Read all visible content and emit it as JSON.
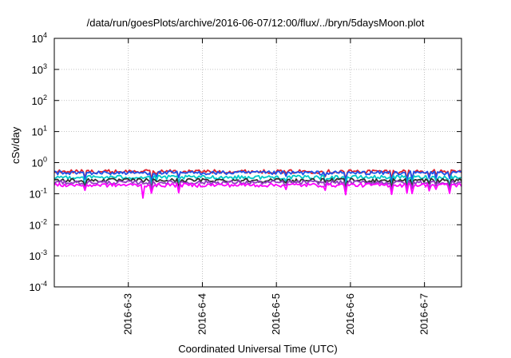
{
  "chart_data": {
    "type": "line",
    "title": "/data/run/goesPlots/archive/2016-06-07/12:00/flux/../bryn/5daysMoon.plot",
    "xlabel": "Coordinated Universal Time (UTC)",
    "ylabel": "cSv/day",
    "yscale": "log",
    "ylim": [
      0.0001,
      10000
    ],
    "yticks": [
      {
        "value": 0.0001,
        "base": "10",
        "exp": "-4"
      },
      {
        "value": 0.001,
        "base": "10",
        "exp": "-3"
      },
      {
        "value": 0.01,
        "base": "10",
        "exp": "-2"
      },
      {
        "value": 0.1,
        "base": "10",
        "exp": "-1"
      },
      {
        "value": 1,
        "base": "10",
        "exp": "0"
      },
      {
        "value": 10,
        "base": "10",
        "exp": "1"
      },
      {
        "value": 100,
        "base": "10",
        "exp": "2"
      },
      {
        "value": 1000,
        "base": "10",
        "exp": "3"
      },
      {
        "value": 10000,
        "base": "10",
        "exp": "4"
      }
    ],
    "xlim": [
      "2016-06-02 00:00",
      "2016-06-07 12:00"
    ],
    "xticks": [
      "2016-6-3",
      "2016-6-4",
      "2016-6-5",
      "2016-6-6",
      "2016-6-7"
    ],
    "xtick_dates": [
      "2016-06-03",
      "2016-06-04",
      "2016-06-05",
      "2016-06-06",
      "2016-06-07"
    ],
    "grid": true,
    "series": [
      {
        "color": "#e0202c",
        "level": 0.52
      },
      {
        "color": "#2050e8",
        "level": 0.47
      },
      {
        "color": "#00c8c8",
        "level": 0.34
      },
      {
        "color": "#303030",
        "level": 0.27
      },
      {
        "color": "#9040c0",
        "level": 0.23
      },
      {
        "color": "#ff00ff",
        "level": 0.19
      }
    ]
  }
}
